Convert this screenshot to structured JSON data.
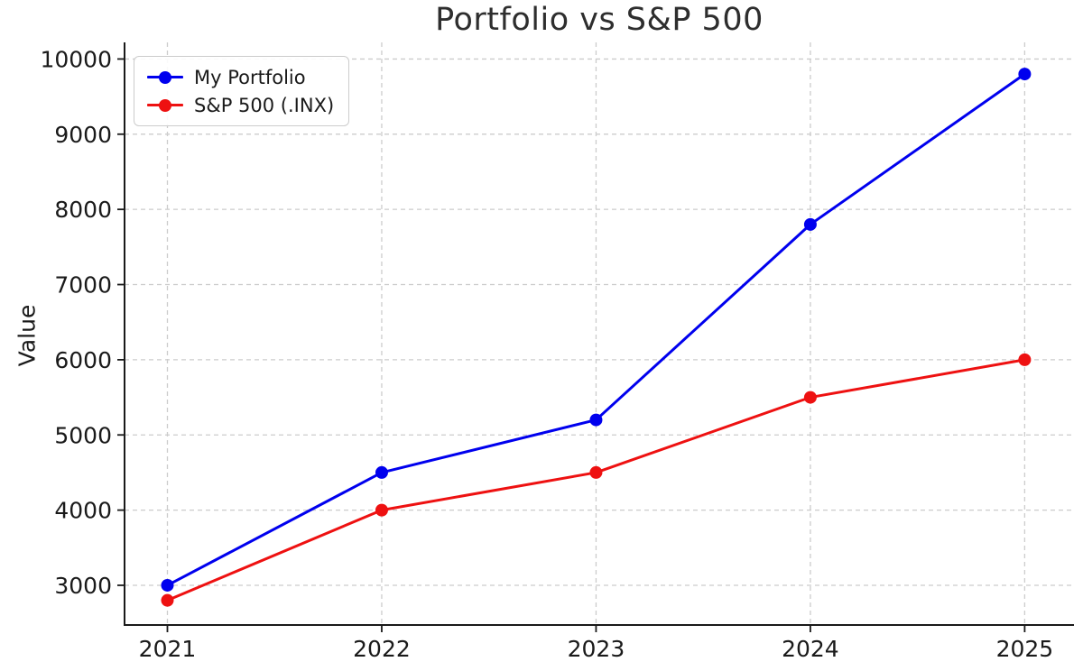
{
  "figure": {
    "background": "#ffffff",
    "text_color": "#1a1a1a",
    "spine_color": "#1a1a1a",
    "grid_color": "#cccccc"
  },
  "chart_data": {
    "type": "line",
    "title": "Portfolio vs S&P 500",
    "xlabel": "",
    "ylabel": "Value",
    "x": [
      2021,
      2022,
      2023,
      2024,
      2025
    ],
    "series": [
      {
        "name": "My Portfolio",
        "color": "#0000ee",
        "marker": "circle",
        "values": [
          3000,
          4500,
          5200,
          7800,
          9800
        ]
      },
      {
        "name": "S&P 500 (.INX)",
        "color": "#ee1111",
        "marker": "circle",
        "values": [
          2800,
          4000,
          4500,
          5500,
          6000
        ]
      }
    ],
    "xticks": [
      "2021",
      "2022",
      "2023",
      "2024",
      "2025"
    ],
    "yticks": [
      3000,
      4000,
      5000,
      6000,
      7000,
      8000,
      9000,
      10000
    ],
    "xlim": [
      2020.8,
      2025.23
    ],
    "ylim": [
      2472,
      10221
    ],
    "grid": true,
    "legend_position": "upper left",
    "spines": [
      "left",
      "bottom"
    ]
  }
}
